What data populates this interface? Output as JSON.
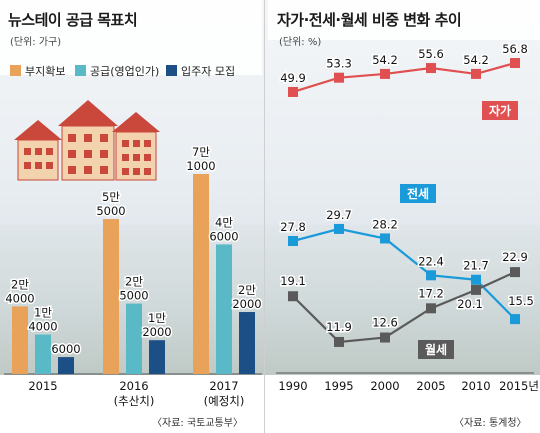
{
  "colors": {
    "site": "#e8a25a",
    "supply": "#5ab9c7",
    "tenant": "#1c4f86",
    "owned": "#e05050",
    "jeonse": "#1a9ad9",
    "monthly": "#5a5a5a",
    "background_sky": "#dde6ee"
  },
  "left_panel": {
    "title": "뉴스테이 공급 목표치",
    "unit": "(단위: 가구)",
    "source": "〈자료: 국토교통부〉"
  },
  "right_panel": {
    "title": "자가·전세·월세 비중 변화 추이",
    "unit": "(단위: %)",
    "source": "〈자료: 통계청〉"
  },
  "chart_data": [
    {
      "type": "bar",
      "title": "뉴스테이 공급 목표치",
      "unit": "(단위: 가구)",
      "categories": [
        "2015",
        "2016",
        "2017"
      ],
      "category_sublabels": [
        "",
        "(추산치)",
        "(예정치)"
      ],
      "series": [
        {
          "name": "부지확보",
          "values": [
            24000,
            55000,
            71000
          ],
          "labels": [
            "2만|4000",
            "5만|5000",
            "7만|1000"
          ]
        },
        {
          "name": "공급(영업인가)",
          "values": [
            14000,
            25000,
            46000
          ],
          "labels": [
            "1만|4000",
            "2만|5000",
            "4만|6000"
          ]
        },
        {
          "name": "입주자 모집",
          "values": [
            6000,
            12000,
            22000
          ],
          "labels": [
            "6000",
            "1만|2000",
            "2만|2000"
          ]
        }
      ],
      "legend": "top-left"
    },
    {
      "type": "line",
      "title": "자가·전세·월세 비중 변화 추이",
      "unit": "(단위: %)",
      "x": [
        "1990",
        "1995",
        "2000",
        "2005",
        "2010",
        "2015년"
      ],
      "series": [
        {
          "name": "자가",
          "values": [
            49.9,
            53.3,
            54.2,
            55.6,
            54.2,
            56.8
          ]
        },
        {
          "name": "전세",
          "values": [
            27.8,
            29.7,
            28.2,
            22.4,
            21.7,
            15.5
          ]
        },
        {
          "name": "월세",
          "values": [
            19.1,
            11.9,
            12.6,
            17.2,
            20.1,
            22.9
          ]
        }
      ],
      "legend": "inline labels"
    }
  ]
}
